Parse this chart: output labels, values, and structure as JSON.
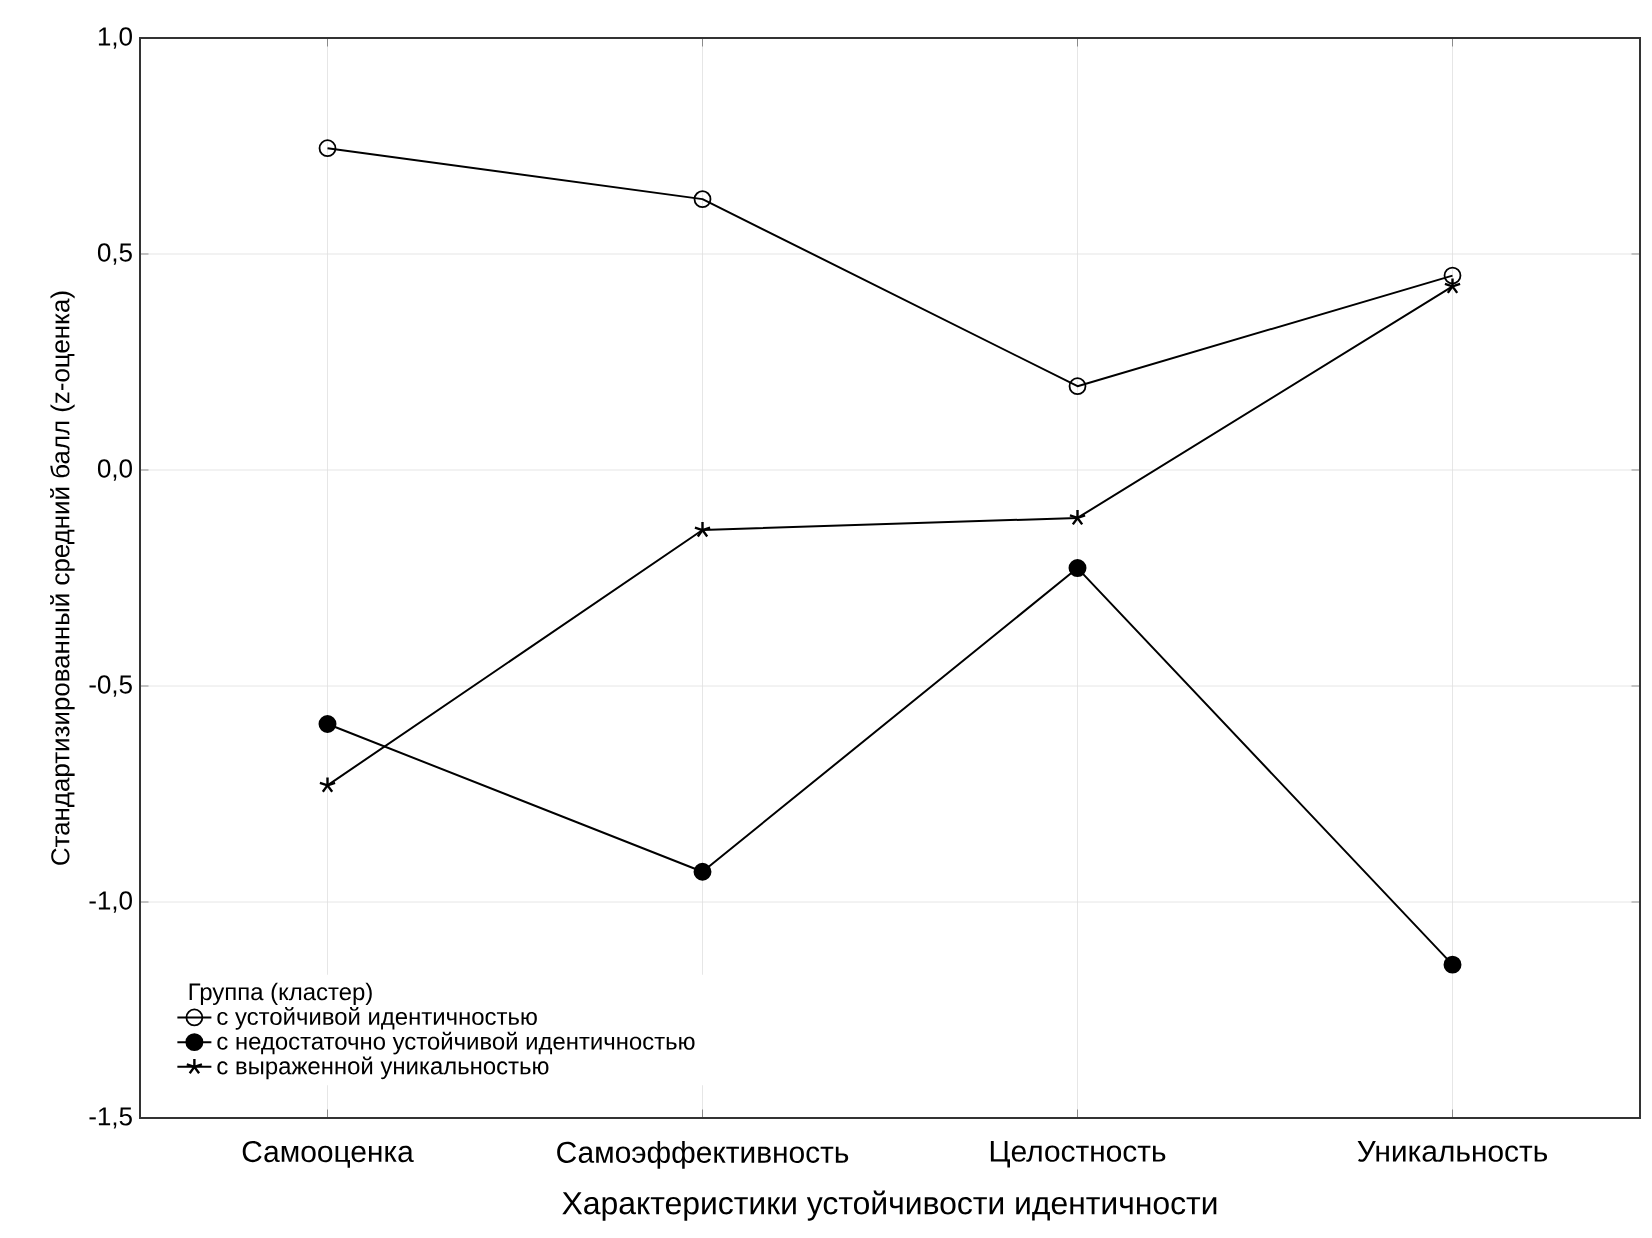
{
  "chart_data": {
    "type": "line",
    "xlabel": "Характеристики устойчивости идентичности",
    "ylabel": "Стандартизированный средний балл (z-оценка)",
    "legend_title": "Группа (кластер)",
    "categories": [
      "Самооценка",
      "Самоэффективность",
      "Целостность",
      "Уникальность"
    ],
    "series": [
      {
        "name": "с устойчивой идентичностью",
        "color": "#000000",
        "marker": "circle-open",
        "values": [
          0.745,
          0.627,
          0.194,
          0.45
        ]
      },
      {
        "name": "с недостаточно устойчивой идентичностью",
        "color": "#000000",
        "marker": "circle",
        "values": [
          -0.588,
          -0.93,
          -0.227,
          -1.145
        ]
      },
      {
        "name": "с выраженной уникальностью",
        "color": "#000000",
        "marker": "cross",
        "values": [
          -0.73,
          -0.139,
          -0.111,
          0.425
        ]
      }
    ],
    "ylim": [
      -1.5,
      1.0
    ],
    "yticks": [
      {
        "value": -1.5,
        "label": "-1,5"
      },
      {
        "value": -1.0,
        "label": "-1,0"
      },
      {
        "value": -0.5,
        "label": "-0,5"
      },
      {
        "value": 0.0,
        "label": "0,0"
      },
      {
        "value": 0.5,
        "label": "0,5"
      },
      {
        "value": 1.0,
        "label": "1,0"
      }
    ],
    "grid": true,
    "legend": "bottom left",
    "line_style": "solid"
  }
}
